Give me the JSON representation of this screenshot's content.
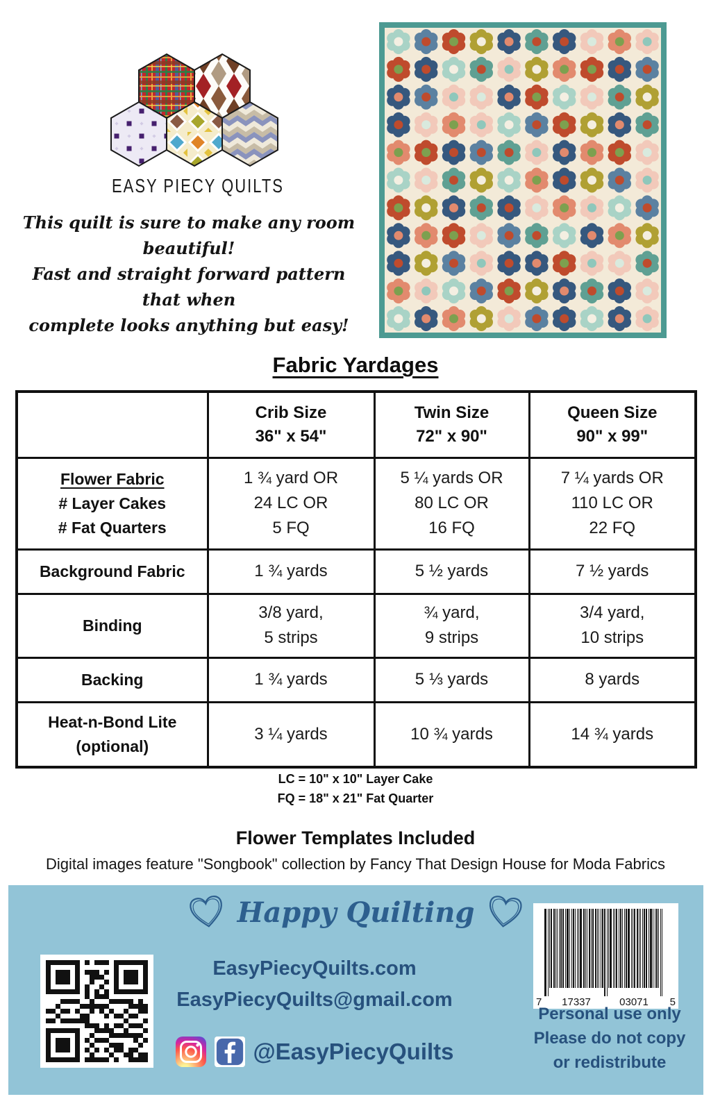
{
  "brand": {
    "name": "EASY PIECY QUILTS"
  },
  "tagline": {
    "lines": [
      "This quilt is sure to make any room beautiful!",
      "Fast and straight forward pattern that when",
      "complete looks anything but easy!"
    ]
  },
  "yardage": {
    "title": "Fabric Yardages",
    "columns": [
      {
        "name": "Crib Size",
        "size": "36\" x 54\""
      },
      {
        "name": "Twin Size",
        "size": "72\" x 90\""
      },
      {
        "name": "Queen Size",
        "size": "90\" x 99\""
      }
    ],
    "rows": [
      {
        "label_lines": [
          "Flower Fabric",
          "# Layer Cakes",
          "# Fat Quarters"
        ],
        "underline_first": true,
        "cells": [
          [
            "1 ¾ yard OR",
            "24 LC OR",
            "5 FQ"
          ],
          [
            "5 ¼ yards OR",
            "80 LC OR",
            "16 FQ"
          ],
          [
            "7 ¼ yards OR",
            "110 LC OR",
            "22 FQ"
          ]
        ]
      },
      {
        "label_lines": [
          "Background Fabric"
        ],
        "cells": [
          [
            "1 ¾ yards"
          ],
          [
            "5 ½ yards"
          ],
          [
            "7 ½ yards"
          ]
        ]
      },
      {
        "label_lines": [
          "Binding"
        ],
        "cells": [
          [
            "3/8 yard,",
            "5 strips"
          ],
          [
            "¾ yard,",
            "9 strips"
          ],
          [
            "3/4 yard,",
            "10 strips"
          ]
        ]
      },
      {
        "label_lines": [
          "Backing"
        ],
        "cells": [
          [
            "1 ¾ yards"
          ],
          [
            "5 ⅓ yards"
          ],
          [
            "8 yards"
          ]
        ]
      },
      {
        "label_lines": [
          "Heat-n-Bond Lite",
          "(optional)"
        ],
        "cells": [
          [
            "3 ¼ yards"
          ],
          [
            "10 ¾ yards"
          ],
          [
            "14 ¾ yards"
          ]
        ]
      }
    ],
    "legend": [
      "LC = 10\" x 10\" Layer Cake",
      "FQ = 18\" x 21\" Fat Quarter"
    ],
    "templates_note": "Flower Templates Included",
    "credit": "Digital images feature  \"Songbook\" collection by Fancy That Design House for Moda Fabrics"
  },
  "footer": {
    "headline": "Happy Quilting",
    "website": "EasyPiecyQuilts.com",
    "email": "EasyPiecyQuilts@gmail.com",
    "social_handle": "@EasyPiecyQuilts",
    "barcode_digits": [
      "7",
      "17337",
      "03071",
      "5"
    ],
    "rights_lines": [
      "Personal use only",
      "Please do not copy",
      "or redistribute"
    ],
    "colors": {
      "background": "#92c4d7",
      "text": "#27517d",
      "headline": "#2d5f8e"
    }
  },
  "quilt": {
    "border_color": "#4d9a92",
    "background": "#f3ead8",
    "rows": 11,
    "cols": 10,
    "flower_variants": [
      [
        "#a9d3c6",
        "#f4efe2"
      ],
      [
        "#b0a033",
        "#f4eee0"
      ],
      [
        "#36587e",
        "#bf4b2d"
      ],
      [
        "#f2c9ba",
        "#8fc7bb"
      ],
      [
        "#bf4b2d",
        "#7da04f"
      ],
      [
        "#5fa093",
        "#bf4b2d"
      ],
      [
        "#e28a6e",
        "#7da04f"
      ],
      [
        "#5b81a1",
        "#bf4b2d"
      ],
      [
        "#36587e",
        "#e28a6e"
      ],
      [
        "#f2c9ba",
        "#d9eade"
      ]
    ]
  }
}
